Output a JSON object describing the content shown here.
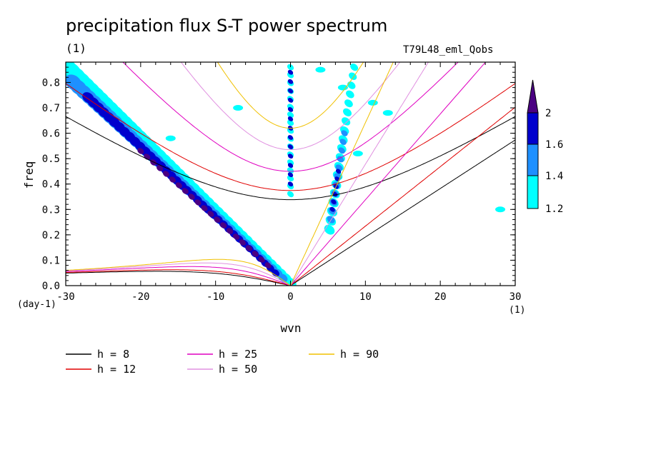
{
  "chart_data": {
    "type": "contour",
    "title": "precipitation flux S-T power spectrum",
    "subtitle_left": "(1)",
    "subtitle_right": "T79L48_eml_Qobs",
    "xlabel": "wvn",
    "ylabel": "freq",
    "x_unit": "(1)",
    "y_unit": "(day-1)",
    "xlim": [
      -30,
      30
    ],
    "ylim": [
      0,
      0.88
    ],
    "xticks": [
      -30,
      -20,
      -10,
      0,
      10,
      20,
      30
    ],
    "xtick_labels": [
      "-30",
      "-20",
      "-10",
      "0",
      "10",
      "20",
      "30"
    ],
    "yticks": [
      0,
      0.1,
      0.2,
      0.3,
      0.4,
      0.5,
      0.6,
      0.7,
      0.8
    ],
    "ytick_labels": [
      "0.0",
      "0.1",
      "0.2",
      "0.3",
      "0.4",
      "0.5",
      "0.6",
      "0.7",
      "0.8"
    ],
    "colorbar": {
      "levels": [
        1.2,
        1.4,
        1.6,
        2
      ],
      "labels": [
        "1.2",
        "1.4",
        "1.6",
        "2"
      ],
      "colors": [
        "#00ffff",
        "#1e90ff",
        "#0000cd",
        "#4b0082"
      ]
    },
    "dispersion_curves": [
      {
        "label": "h =  8",
        "h": 8,
        "color": "#000000"
      },
      {
        "label": "h = 12",
        "h": 12,
        "color": "#e00000"
      },
      {
        "label": "h = 25",
        "h": 25,
        "color": "#e000c0"
      },
      {
        "label": "h = 50",
        "h": 50,
        "color": "#e090e0"
      },
      {
        "label": "h = 90",
        "h": 90,
        "color": "#f0c000"
      }
    ],
    "spectral_features": [
      {
        "name": "westward-diagonal-band",
        "x_range": [
          -30,
          0
        ],
        "y_range": [
          0,
          0.88
        ],
        "note": "enhanced power along line from (-30,0.88) to (0,0)"
      },
      {
        "name": "zonal-mean-column",
        "x": 0,
        "y_range": [
          0.33,
          0.88
        ]
      },
      {
        "name": "kelvin-band",
        "x_range": [
          4,
          12
        ],
        "y_range": [
          0.2,
          0.88
        ]
      }
    ]
  }
}
